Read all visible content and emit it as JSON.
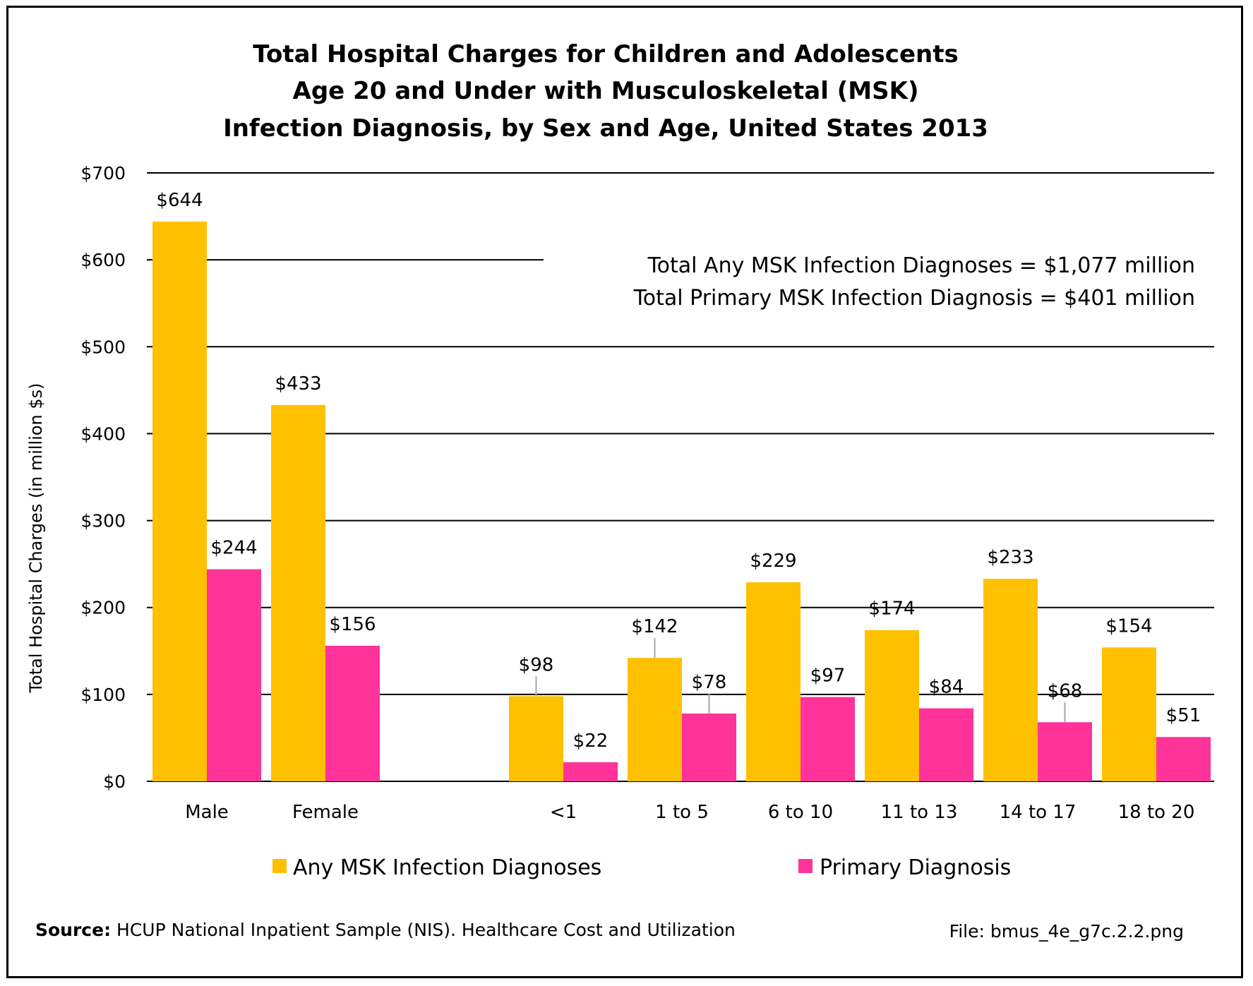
{
  "title_lines": [
    "Total Hospital Charges for Children and Adolescents",
    "Age 20 and Under with Musculoskeletal (MSK)",
    "Infection Diagnosis, by Sex and Age, United States 2013"
  ],
  "notes": [
    "Total Any MSK Infection Diagnoses = $1,077 million",
    "Total Primary MSK Infection Diagnosis = $401 million"
  ],
  "source_label": "Source:",
  "source_text": " HCUP National Inpatient Sample (NIS). Healthcare Cost and Utilization",
  "file_label": "File: bmus_4e_g7c.2.2.png",
  "chart_data": {
    "type": "bar",
    "title": "Total Hospital Charges for Children and Adolescents Age 20 and Under with Musculoskeletal (MSK) Infection Diagnosis, by Sex and Age, United States 2013",
    "ylabel": "Total Hospital Charges (in million $s)",
    "xlabel": "",
    "ylim": [
      0,
      700
    ],
    "yticks": [
      0,
      100,
      200,
      300,
      400,
      500,
      600,
      700
    ],
    "ytick_labels": [
      "$0",
      "$100",
      "$200",
      "$300",
      "$400",
      "$500",
      "$600",
      "$700"
    ],
    "grid": true,
    "legend_position": "bottom",
    "categories": [
      "Male",
      "Female",
      "<1",
      "1 to 5",
      "6 to 10",
      "11 to 13",
      "14 to 17",
      "18 to 20"
    ],
    "series": [
      {
        "name": "Any MSK Infection Diagnoses",
        "color": "#FFC000",
        "values": [
          644,
          433,
          98,
          142,
          229,
          174,
          233,
          154
        ],
        "labels": [
          "$644",
          "$433",
          "$98",
          "$142",
          "$229",
          "$174",
          "$233",
          "$154"
        ]
      },
      {
        "name": "Primary Diagnosis",
        "color": "#FF3399",
        "values": [
          244,
          156,
          22,
          78,
          97,
          84,
          68,
          51
        ],
        "labels": [
          "$244",
          "$156",
          "$22",
          "$78",
          "$97",
          "$84",
          "$68",
          "$51"
        ]
      }
    ]
  }
}
